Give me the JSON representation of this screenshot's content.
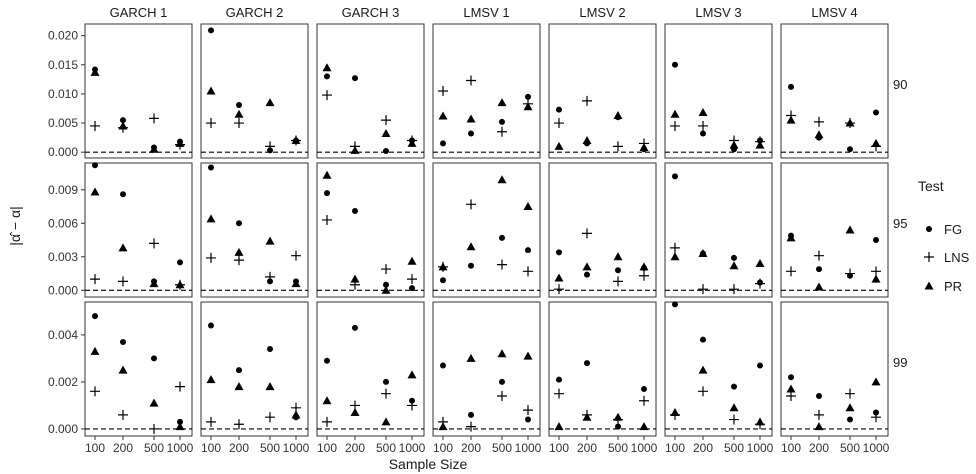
{
  "chart_data": {
    "type": "scatter",
    "facet_columns": [
      "GARCH 1",
      "GARCH 2",
      "GARCH 3",
      "LMSV 1",
      "LMSV 2",
      "LMSV 3",
      "LMSV 4"
    ],
    "facet_rows": [
      "90",
      "95",
      "99"
    ],
    "categories": [
      "100",
      "200",
      "500",
      "1000"
    ],
    "xlabel": "Sample Size",
    "ylabel": "|α̂ − α|",
    "legend": {
      "title": "Test",
      "entries": [
        "FG",
        "LNS",
        "PR"
      ],
      "placement": "right"
    },
    "hline": 0,
    "grid": false,
    "rows": [
      {
        "ylim": [
          -0.001,
          0.022
        ],
        "yticks": [
          0.0,
          0.005,
          0.01,
          0.015,
          0.02
        ],
        "ytick_labels": [
          "0.000",
          "0.005",
          "0.010",
          "0.015",
          "0.020"
        ],
        "panels": [
          {
            "FG": [
              0.0142,
              0.0055,
              0.0008,
              0.0018
            ],
            "LNS": [
              0.0045,
              0.0042,
              0.0058,
              0.0013
            ],
            "PR": [
              0.0137,
              0.0045,
              0.0005,
              0.0015
            ]
          },
          {
            "FG": [
              0.0209,
              0.0081,
              0.0003,
              0.002
            ],
            "LNS": [
              0.005,
              0.005,
              0.001,
              0.002
            ],
            "PR": [
              0.0105,
              0.0065,
              0.0085,
              0.002
            ]
          },
          {
            "FG": [
              0.013,
              0.0127,
              0.0002,
              0.002
            ],
            "LNS": [
              0.0098,
              0.001,
              0.0055,
              0.002
            ],
            "PR": [
              0.0145,
              0.0003,
              0.0032,
              0.0015
            ]
          },
          {
            "FG": [
              0.0015,
              0.0032,
              0.0052,
              0.0095
            ],
            "LNS": [
              0.0105,
              0.0123,
              0.0035,
              0.0083
            ],
            "PR": [
              0.0062,
              0.0057,
              0.0085,
              0.0078
            ]
          },
          {
            "FG": [
              0.0073,
              0.0015,
              0.006,
              0.0005
            ],
            "LNS": [
              0.005,
              0.0088,
              0.001,
              0.0015
            ],
            "PR": [
              0.001,
              0.002,
              0.0063,
              0.0008
            ]
          },
          {
            "FG": [
              0.015,
              0.0032,
              0.0005,
              0.002
            ],
            "LNS": [
              0.0045,
              0.0045,
              0.002,
              0.0018
            ],
            "PR": [
              0.0065,
              0.0068,
              0.0012,
              0.0012
            ]
          },
          {
            "FG": [
              0.0112,
              0.0025,
              0.0005,
              0.0068
            ],
            "LNS": [
              0.0063,
              0.0052,
              0.005,
              0.001
            ],
            "PR": [
              0.0055,
              0.003,
              0.005,
              0.0015
            ]
          }
        ]
      },
      {
        "ylim": [
          -0.0006,
          0.0114
        ],
        "yticks": [
          0.0,
          0.003,
          0.006,
          0.009
        ],
        "ytick_labels": [
          "0.000",
          "0.003",
          "0.006",
          "0.009"
        ],
        "panels": [
          {
            "FG": [
              0.0112,
              0.0086,
              0.0008,
              0.0025
            ],
            "LNS": [
              0.001,
              0.0008,
              0.0042,
              0.0005
            ],
            "PR": [
              0.0088,
              0.0038,
              0.0006,
              0.0005
            ]
          },
          {
            "FG": [
              0.011,
              0.006,
              0.0008,
              0.0008
            ],
            "LNS": [
              0.0029,
              0.0027,
              0.0012,
              0.0031
            ],
            "PR": [
              0.0064,
              0.0034,
              0.0044,
              0.0006
            ]
          },
          {
            "FG": [
              0.0087,
              0.0071,
              0.0005,
              0.0002
            ],
            "LNS": [
              0.0063,
              0.0005,
              0.0019,
              0.001
            ],
            "PR": [
              0.0103,
              0.001,
              0.0,
              0.0026
            ]
          },
          {
            "FG": [
              0.0009,
              0.0022,
              0.0047,
              0.0036
            ],
            "LNS": [
              0.0021,
              0.0077,
              0.0023,
              0.0017
            ],
            "PR": [
              0.0021,
              0.0039,
              0.0099,
              0.0075
            ]
          },
          {
            "FG": [
              0.0034,
              0.0014,
              0.0018,
              0.002
            ],
            "LNS": [
              0.0001,
              0.0051,
              0.0008,
              0.0013
            ],
            "PR": [
              0.0011,
              0.0021,
              0.003,
              0.0021
            ]
          },
          {
            "FG": [
              0.0102,
              0.0033,
              0.0029,
              0.0007
            ],
            "LNS": [
              0.0038,
              0.0001,
              0.0001,
              0.0006
            ],
            "PR": [
              0.003,
              0.0033,
              0.0022,
              0.0024
            ]
          },
          {
            "FG": [
              0.0049,
              0.0019,
              0.0013,
              0.0045
            ],
            "LNS": [
              0.0017,
              0.0031,
              0.0015,
              0.0017
            ],
            "PR": [
              0.0047,
              0.0003,
              0.0054,
              0.001
            ]
          }
        ]
      },
      {
        "ylim": [
          -0.0003,
          0.0054
        ],
        "yticks": [
          0.0,
          0.002,
          0.004
        ],
        "ytick_labels": [
          "0.000",
          "0.002",
          "0.004"
        ],
        "panels": [
          {
            "FG": [
              0.0048,
              0.0037,
              0.003,
              0.0003
            ],
            "LNS": [
              0.0016,
              0.0006,
              0.0,
              0.0018
            ],
            "PR": [
              0.0033,
              0.0025,
              0.0011,
              0.0001
            ]
          },
          {
            "FG": [
              0.0044,
              0.0025,
              0.0034,
              0.0005
            ],
            "LNS": [
              0.0003,
              0.0002,
              0.0005,
              0.0009
            ],
            "PR": [
              0.0021,
              0.0018,
              0.0018,
              0.0006
            ]
          },
          {
            "FG": [
              0.0029,
              0.0043,
              0.002,
              0.0012
            ],
            "LNS": [
              0.0003,
              0.001,
              0.0015,
              0.001
            ],
            "PR": [
              0.0012,
              0.0007,
              0.0003,
              0.0023
            ]
          },
          {
            "FG": [
              0.0027,
              0.0006,
              0.002,
              0.0004
            ],
            "LNS": [
              0.0003,
              0.0001,
              0.0014,
              0.0008
            ],
            "PR": [
              0.0001,
              0.003,
              0.0032,
              0.0031
            ]
          },
          {
            "FG": [
              0.0021,
              0.0028,
              0.0001,
              0.0017
            ],
            "LNS": [
              0.0015,
              0.0006,
              0.0004,
              0.0012
            ],
            "PR": [
              0.0001,
              0.0005,
              0.0005,
              0.0001
            ]
          },
          {
            "FG": [
              0.0053,
              0.0038,
              0.0018,
              0.0027
            ],
            "LNS": [
              0.0006,
              0.0016,
              0.0004,
              0.0002
            ],
            "PR": [
              0.0007,
              0.0025,
              0.0009,
              0.0003
            ]
          },
          {
            "FG": [
              0.0022,
              0.0014,
              0.0004,
              0.0007
            ],
            "LNS": [
              0.0014,
              0.0006,
              0.0015,
              0.0005
            ],
            "PR": [
              0.0017,
              0.0001,
              0.0009,
              0.002
            ]
          }
        ]
      }
    ]
  }
}
